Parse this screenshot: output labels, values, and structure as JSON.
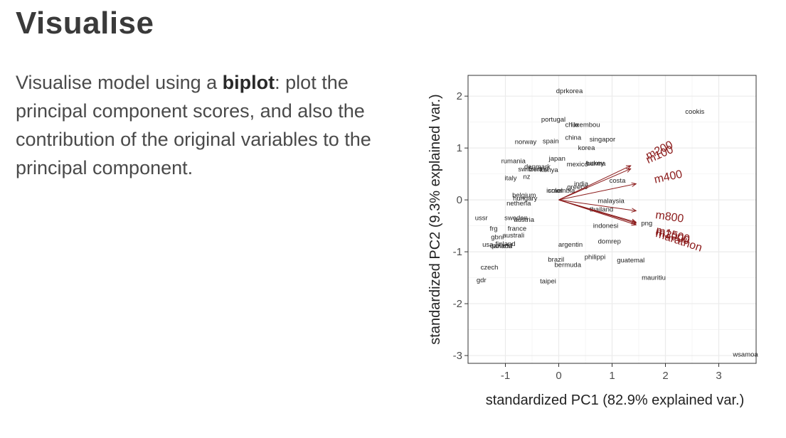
{
  "slide": {
    "title": "Visualise",
    "text_before": "Visualise model using a ",
    "text_bold": "biplot",
    "text_after": ": plot the principal component scores, and also the contribution of the original variables to the principal component."
  },
  "chart_data": {
    "type": "scatter",
    "subtype": "biplot",
    "xlabel": "standardized PC1 (82.9% explained var.)",
    "ylabel": "standardized PC2 (9.3% explained var.)",
    "xlim": [
      -1.7,
      3.7
    ],
    "ylim": [
      -3.15,
      2.4
    ],
    "xticks": [
      -1,
      0,
      1,
      2,
      3
    ],
    "yticks": [
      -3,
      -2,
      -1,
      0,
      1,
      2
    ],
    "grid": true,
    "colors": {
      "points": "#222222",
      "arrows": "#8b1a1a",
      "grid": "#ebebeb",
      "panel_border": "#333333"
    },
    "points": [
      {
        "label": "dprkorea",
        "x": 0.2,
        "y": 2.1
      },
      {
        "label": "portugal",
        "x": -0.1,
        "y": 1.55
      },
      {
        "label": "chile",
        "x": 0.25,
        "y": 1.45
      },
      {
        "label": "luxembou",
        "x": 0.5,
        "y": 1.45
      },
      {
        "label": "cookis",
        "x": 2.55,
        "y": 1.7
      },
      {
        "label": "china",
        "x": 0.27,
        "y": 1.2
      },
      {
        "label": "singapor",
        "x": 0.82,
        "y": 1.17
      },
      {
        "label": "norway",
        "x": -0.62,
        "y": 1.12
      },
      {
        "label": "spain",
        "x": -0.15,
        "y": 1.13
      },
      {
        "label": "korea",
        "x": 0.52,
        "y": 1.0
      },
      {
        "label": "japan",
        "x": -0.03,
        "y": 0.8
      },
      {
        "label": "rumania",
        "x": -0.85,
        "y": 0.75
      },
      {
        "label": "mexico",
        "x": 0.35,
        "y": 0.69
      },
      {
        "label": "turkey",
        "x": 0.68,
        "y": 0.71
      },
      {
        "label": "burma",
        "x": 0.7,
        "y": 0.7
      },
      {
        "label": "denmark",
        "x": -0.4,
        "y": 0.64
      },
      {
        "label": "switzerl",
        "x": -0.55,
        "y": 0.59
      },
      {
        "label": "finland",
        "x": -0.38,
        "y": 0.6
      },
      {
        "label": "kenya",
        "x": -0.18,
        "y": 0.58
      },
      {
        "label": "italy",
        "x": -0.9,
        "y": 0.42
      },
      {
        "label": "nz",
        "x": -0.6,
        "y": 0.45
      },
      {
        "label": "costa",
        "x": 1.1,
        "y": 0.37
      },
      {
        "label": "india",
        "x": 0.42,
        "y": 0.31
      },
      {
        "label": "greece",
        "x": 0.35,
        "y": 0.25
      },
      {
        "label": "israel",
        "x": -0.08,
        "y": 0.18
      },
      {
        "label": "colombia",
        "x": 0.05,
        "y": 0.18
      },
      {
        "label": "belgium",
        "x": -0.65,
        "y": 0.09
      },
      {
        "label": "hungary",
        "x": -0.63,
        "y": 0.03
      },
      {
        "label": "malaysia",
        "x": 0.98,
        "y": -0.02
      },
      {
        "label": "netherla",
        "x": -0.75,
        "y": -0.07
      },
      {
        "label": "thailand",
        "x": 0.8,
        "y": -0.18
      },
      {
        "label": "ussr",
        "x": -1.45,
        "y": -0.35
      },
      {
        "label": "sweden",
        "x": -0.8,
        "y": -0.35
      },
      {
        "label": "austria",
        "x": -0.65,
        "y": -0.38
      },
      {
        "label": "png",
        "x": 1.65,
        "y": -0.45
      },
      {
        "label": "indonesi",
        "x": 0.88,
        "y": -0.5
      },
      {
        "label": "frg",
        "x": -1.22,
        "y": -0.55
      },
      {
        "label": "france",
        "x": -0.78,
        "y": -0.55
      },
      {
        "label": "australi",
        "x": -0.85,
        "y": -0.68
      },
      {
        "label": "gbni",
        "x": -1.15,
        "y": -0.72
      },
      {
        "label": "domrep",
        "x": 0.95,
        "y": -0.8
      },
      {
        "label": "usa",
        "x": -1.33,
        "y": -0.86
      },
      {
        "label": "finland",
        "x": -1.0,
        "y": -0.85
      },
      {
        "label": "poland",
        "x": -1.06,
        "y": -0.88
      },
      {
        "label": "canada",
        "x": -1.08,
        "y": -0.89
      },
      {
        "label": "argentin",
        "x": 0.22,
        "y": -0.86
      },
      {
        "label": "philippi",
        "x": 0.68,
        "y": -1.1
      },
      {
        "label": "guatemal",
        "x": 1.35,
        "y": -1.16
      },
      {
        "label": "brazil",
        "x": -0.05,
        "y": -1.15
      },
      {
        "label": "bermuda",
        "x": 0.17,
        "y": -1.25
      },
      {
        "label": "czech",
        "x": -1.3,
        "y": -1.3
      },
      {
        "label": "mauritiu",
        "x": 1.78,
        "y": -1.5
      },
      {
        "label": "gdr",
        "x": -1.45,
        "y": -1.55
      },
      {
        "label": "taipei",
        "x": -0.2,
        "y": -1.57
      },
      {
        "label": "wsamoa",
        "x": 3.5,
        "y": -2.98
      }
    ],
    "arrows": [
      {
        "label": "m100",
        "x": 1.35,
        "y": 0.6
      },
      {
        "label": "m200",
        "x": 1.35,
        "y": 0.66
      },
      {
        "label": "m400",
        "x": 1.45,
        "y": 0.31
      },
      {
        "label": "m800",
        "x": 1.45,
        "y": -0.21
      },
      {
        "label": "m1500",
        "x": 1.45,
        "y": -0.43
      },
      {
        "label": "m3000",
        "x": 1.45,
        "y": -0.45
      },
      {
        "label": "marathon",
        "x": 1.45,
        "y": -0.48
      }
    ]
  }
}
